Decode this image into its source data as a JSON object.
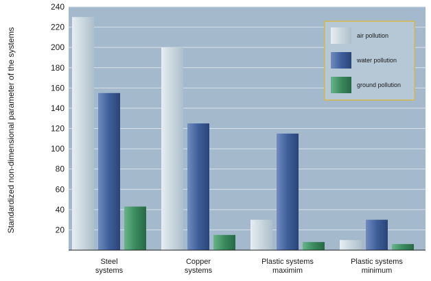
{
  "chart_data": {
    "type": "bar",
    "title": "",
    "xlabel": "",
    "ylabel": "Standardized non-dimensional parameter of the systems",
    "ylim": [
      0,
      240
    ],
    "yticks": [
      20,
      40,
      60,
      80,
      100,
      120,
      140,
      160,
      180,
      200,
      220,
      240
    ],
    "grid": true,
    "legend_position": "top-right",
    "categories": [
      [
        "Steel",
        "systems"
      ],
      [
        "Copper",
        "systems"
      ],
      [
        "Plastic systems",
        "maximim"
      ],
      [
        "Plastic systems",
        "minimum"
      ]
    ],
    "series": [
      {
        "name": "air pollution",
        "values": [
          230,
          200,
          30,
          10
        ],
        "color": "#c9d6de"
      },
      {
        "name": "water pollution",
        "values": [
          155,
          125,
          115,
          30
        ],
        "color": "#3f5f9a"
      },
      {
        "name": "ground pollution",
        "values": [
          43,
          15,
          8,
          6
        ],
        "color": "#3a8a5e"
      }
    ],
    "plot_background": "#a4b9cc"
  }
}
